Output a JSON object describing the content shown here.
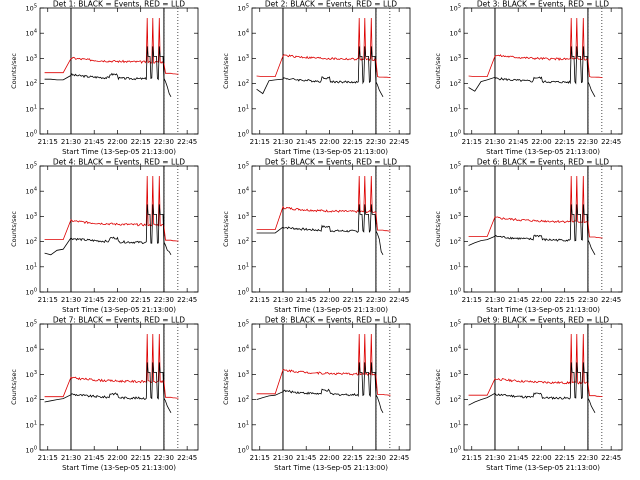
{
  "chart_data": [
    {
      "type": "line",
      "title": "Det 1: BLACK = Events, RED = LLD",
      "events_level": 150,
      "lld_level": 700,
      "events_pre": [
        150,
        150,
        140,
        140
      ],
      "lld_pre": [
        270,
        270,
        270,
        270
      ]
    },
    {
      "type": "line",
      "title": "Det 2: BLACK = Events, RED = LLD",
      "events_level": 110,
      "lld_level": 900,
      "events_pre": [
        60,
        40,
        130,
        140
      ],
      "lld_pre": [
        200,
        190,
        190,
        190
      ]
    },
    {
      "type": "line",
      "title": "Det 3: BLACK = Events, RED = LLD",
      "events_level": 110,
      "lld_level": 900,
      "events_pre": [
        70,
        50,
        120,
        140
      ],
      "lld_pre": [
        200,
        190,
        190,
        190
      ]
    },
    {
      "type": "line",
      "title": "Det 4: BLACK = Events, RED = LLD",
      "events_level": 90,
      "lld_level": 450,
      "events_pre": [
        35,
        30,
        45,
        50
      ],
      "lld_pre": [
        120,
        120,
        120,
        120
      ]
    },
    {
      "type": "line",
      "title": "Det 5: BLACK = Events, RED = LLD",
      "events_level": 250,
      "lld_level": 1500,
      "events_pre": [
        220,
        220,
        220,
        220
      ],
      "lld_pre": [
        300,
        300,
        300,
        300
      ]
    },
    {
      "type": "line",
      "title": "Det 6: BLACK = Events, RED = LLD",
      "events_level": 110,
      "lld_level": 600,
      "events_pre": [
        70,
        90,
        110,
        120
      ],
      "lld_pre": [
        160,
        160,
        160,
        160
      ]
    },
    {
      "type": "line",
      "title": "Det 7: BLACK = Events, RED = LLD",
      "events_level": 110,
      "lld_level": 500,
      "events_pre": [
        80,
        90,
        100,
        110
      ],
      "lld_pre": [
        130,
        130,
        130,
        130
      ]
    },
    {
      "type": "line",
      "title": "Det 8: BLACK = Events, RED = LLD",
      "events_level": 150,
      "lld_level": 1000,
      "events_pre": [
        100,
        120,
        140,
        150
      ],
      "lld_pre": [
        170,
        170,
        170,
        170
      ]
    },
    {
      "type": "line",
      "title": "Det 9: BLACK = Events, RED = LLD",
      "events_level": 110,
      "lld_level": 450,
      "events_pre": [
        60,
        80,
        100,
        120
      ],
      "lld_pre": [
        150,
        150,
        150,
        150
      ]
    }
  ],
  "shared": {
    "xlabel": "Start Time (13-Sep-05 21:13:00)",
    "ylabel": "Counts/sec",
    "x_ticks": [
      "21:15",
      "21:30",
      "21:45",
      "22:00",
      "22:15",
      "22:30",
      "22:45"
    ],
    "y_ticks_exp": [
      "0",
      "1",
      "2",
      "3",
      "4",
      "5"
    ],
    "y_scale": "log",
    "ylim": [
      1,
      100000
    ],
    "series": [
      {
        "name": "BLACK = Events",
        "color": "#000000"
      },
      {
        "name": "RED = LLD",
        "color": "#dd0000"
      }
    ],
    "vertical_lines_solid": [
      "21:30",
      "22:30"
    ],
    "vertical_lines_dotted": [
      "22:30",
      "22:39"
    ]
  }
}
